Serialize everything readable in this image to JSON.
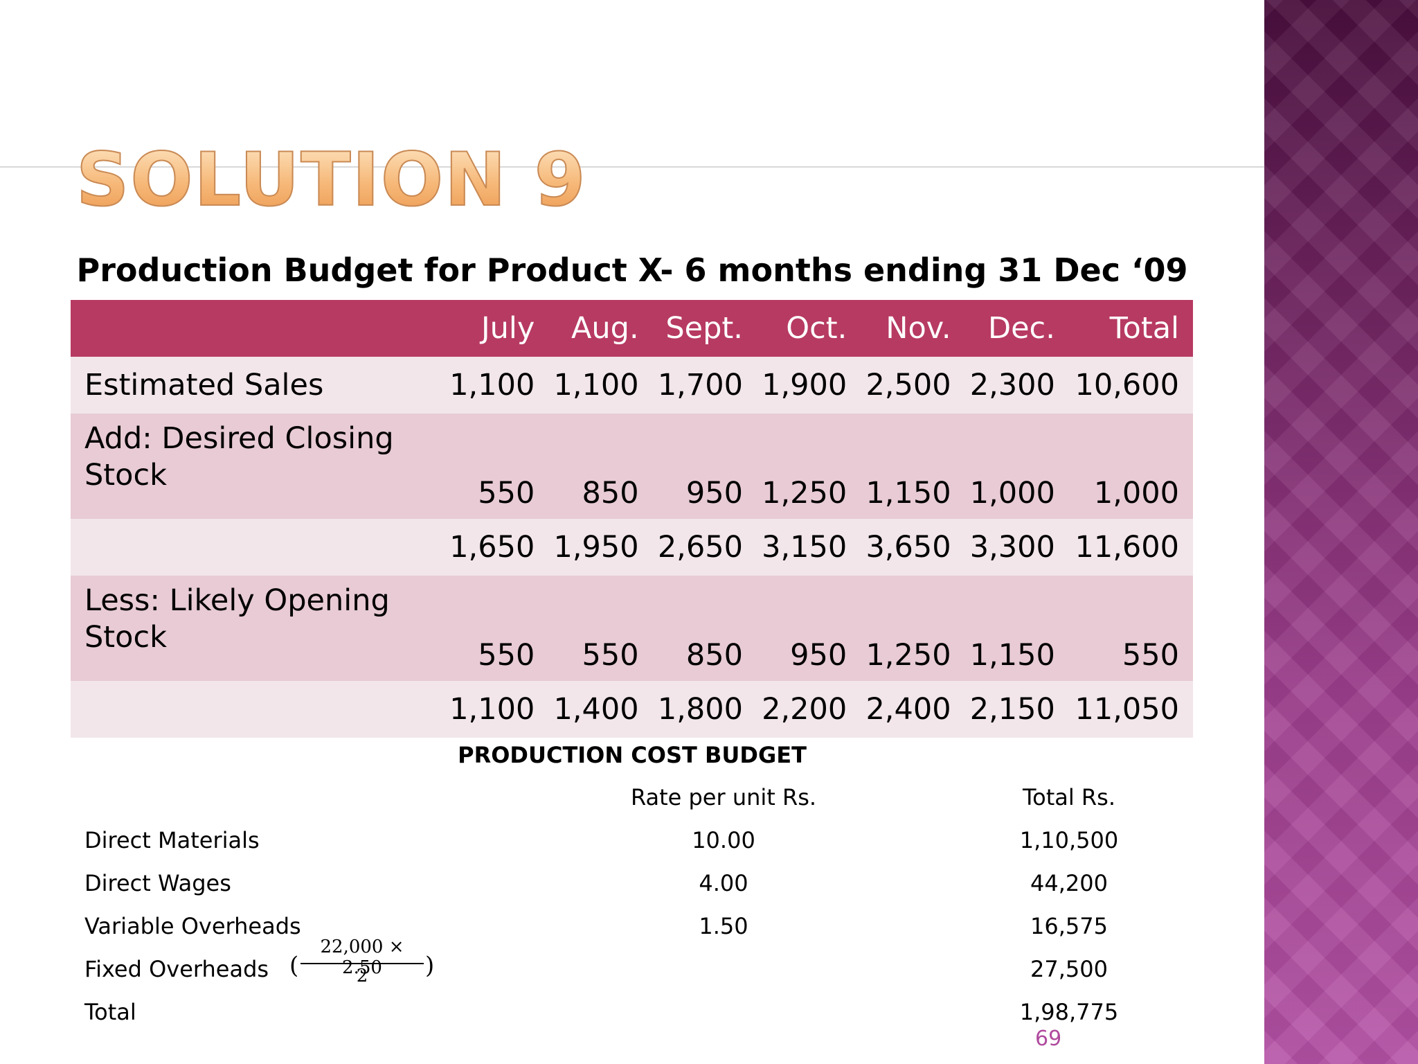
{
  "slide": {
    "title": "SOLUTION 9",
    "page_number": "69"
  },
  "production_budget": {
    "heading": "Production Budget for Product X- 6 months ending 31 Dec ‘09",
    "columns": [
      "",
      "July",
      "Aug.",
      "Sept.",
      "Oct.",
      "Nov.",
      "Dec.",
      "Total"
    ],
    "rows": [
      {
        "label": "Estimated Sales",
        "values": [
          "1,100",
          "1,100",
          "1,700",
          "1,900",
          "2,500",
          "2,300",
          "10,600"
        ]
      },
      {
        "label": "Add: Desired Closing Stock",
        "values": [
          "550",
          "850",
          "950",
          "1,250",
          "1,150",
          "1,000",
          "1,000"
        ]
      },
      {
        "label": "",
        "values": [
          "1,650",
          "1,950",
          "2,650",
          "3,150",
          "3,650",
          "3,300",
          "11,600"
        ]
      },
      {
        "label": "Less: Likely Opening Stock",
        "values": [
          "550",
          "550",
          "850",
          "950",
          "1,250",
          "1,150",
          "550"
        ]
      },
      {
        "label": "",
        "values": [
          "1,100",
          "1,400",
          "1,800",
          "2,200",
          "2,400",
          "2,150",
          "11,050"
        ]
      }
    ]
  },
  "cost_budget": {
    "heading": "PRODUCTION COST BUDGET",
    "header": {
      "label": "",
      "rate": "Rate per unit Rs.",
      "total": "Total Rs."
    },
    "rows": [
      {
        "label": "Direct Materials",
        "rate": "10.00",
        "total": "1,10,500"
      },
      {
        "label": "Direct Wages",
        "rate": "4.00",
        "total": "44,200"
      },
      {
        "label": "Variable Overheads",
        "rate": "1.50",
        "total": "16,575"
      },
      {
        "label": "Fixed Overheads",
        "rate": "",
        "total": "27,500"
      },
      {
        "label": "Total",
        "rate": "",
        "total": "1,98,775"
      }
    ],
    "fixed_overheads_formula": {
      "open": "(",
      "numerator": "22,000 × 2.50",
      "denominator": "2",
      "close": ")"
    }
  }
}
